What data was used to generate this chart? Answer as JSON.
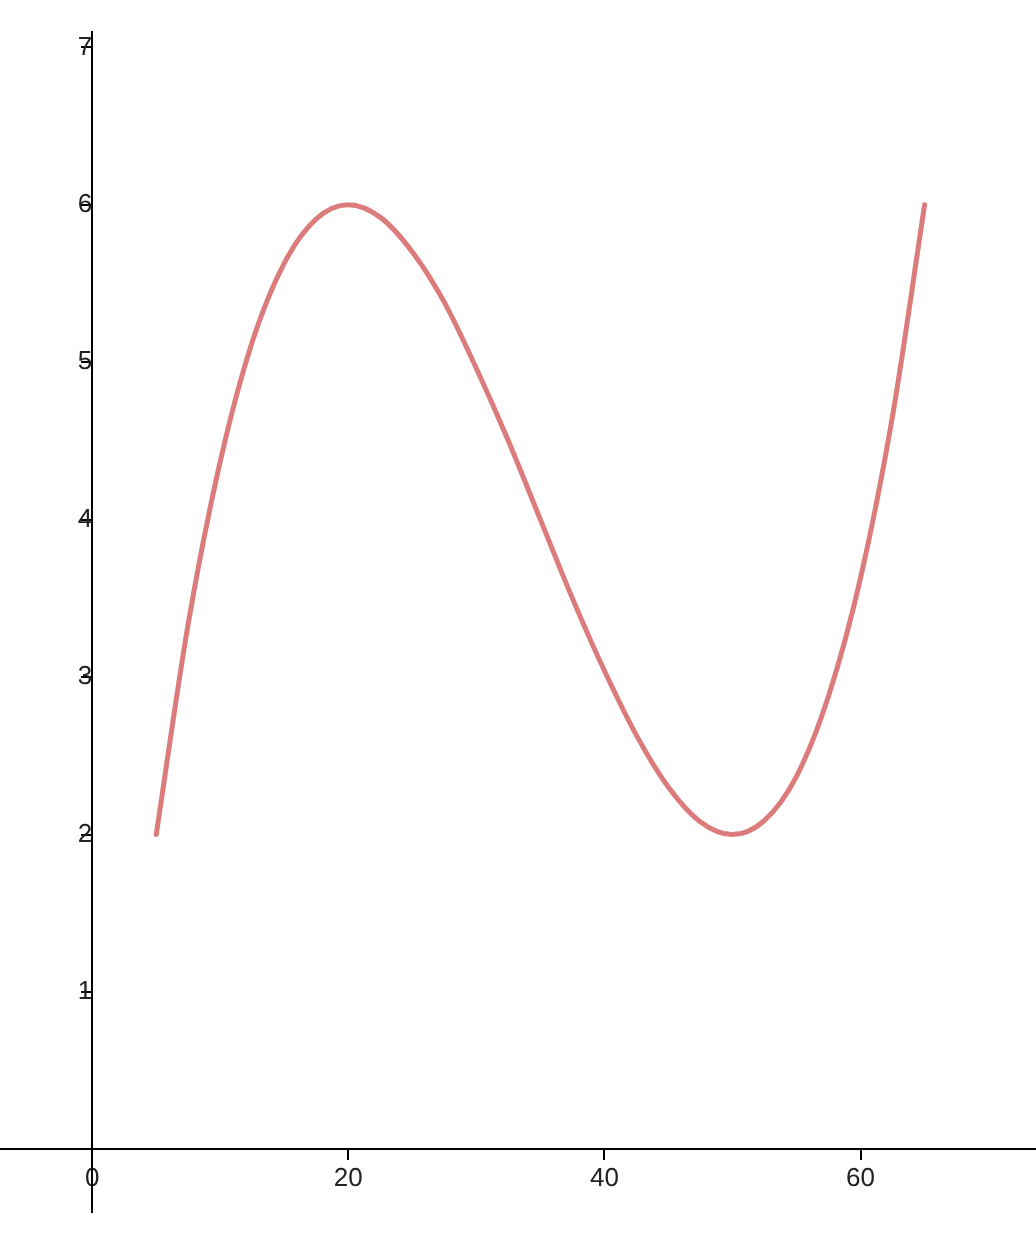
{
  "chart_data": {
    "type": "line",
    "series": [
      {
        "color": "#db7b7b",
        "x": [
          5,
          7.5,
          10,
          12.5,
          15,
          17.5,
          20,
          22.5,
          25,
          27.5,
          30,
          32.5,
          35,
          37.5,
          40,
          42.5,
          45,
          47.5,
          50,
          52.5,
          55,
          57.5,
          60,
          62.5,
          65
        ],
        "values": [
          2,
          3.34,
          4.37,
          5.13,
          5.63,
          5.91,
          6,
          5.92,
          5.7,
          5.38,
          4.96,
          4.5,
          4,
          3.5,
          3.04,
          2.63,
          2.3,
          2.08,
          2,
          2.09,
          2.37,
          2.88,
          3.63,
          4.66,
          6
        ]
      }
    ],
    "xlim": [
      -7.2,
      73.7
    ],
    "ylim": [
      -0.4,
      7.1
    ],
    "xticks": [
      0,
      20,
      40,
      60
    ],
    "yticks": [
      {
        "value": 0,
        "label": null
      },
      1,
      2,
      3,
      4,
      5,
      6,
      7
    ],
    "grid": false,
    "legend": false,
    "marker": "none",
    "line_style": "solid"
  }
}
